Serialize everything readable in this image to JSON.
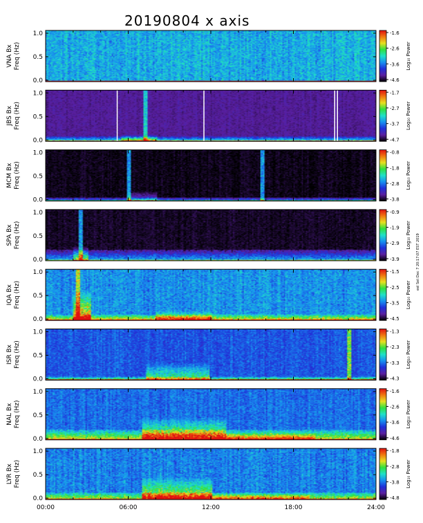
{
  "page": {
    "title": "20190804  x  axis",
    "side_note": "eel Set Dec 7 20:17:07 EST 2019"
  },
  "chart_data": {
    "type": "heatmap",
    "title": "20190804  x  axis",
    "xlabel": "",
    "x_ticks": [
      "00:00",
      "06:00",
      "12:00",
      "18:00",
      "24:00"
    ],
    "x_range_hours": [
      0,
      24
    ],
    "y_ticks": [
      "0.0",
      "0.5",
      "1.0"
    ],
    "ylim": [
      0,
      1.0
    ],
    "colorbar_label": "Log₁₀ Power",
    "colormap": [
      "#000000",
      "#5a1fa0",
      "#2030d8",
      "#1890f0",
      "#20e0c8",
      "#30e040",
      "#e8e020",
      "#f07810",
      "#e01010"
    ],
    "panels": [
      {
        "station": "VNA",
        "ylabel": "VNA Bx",
        "ylabel2": "Freq (Hz)",
        "cbar_ticks": [
          "-1.6",
          "-2.6",
          "-3.6",
          "-4.6"
        ],
        "base": 0.42,
        "noise": 0.14,
        "floor": 0.03,
        "floor_strength": 0.9,
        "gaps": [],
        "bursts": [],
        "spikes": []
      },
      {
        "station": "JBS",
        "ylabel": "JBS Bx",
        "ylabel2": "Freq (Hz)",
        "cbar_ticks": [
          "-1.7",
          "-2.7",
          "-3.7",
          "-4.7"
        ],
        "base": 0.12,
        "noise": 0.05,
        "floor": 0.1,
        "floor_strength": 0.55,
        "gaps": [
          5.2,
          11.5,
          21.0,
          21.2
        ],
        "bursts": [
          {
            "t0": 5.5,
            "t1": 8.0,
            "f": 0.15,
            "s": 0.4
          }
        ],
        "spikes": [
          7.2
        ]
      },
      {
        "station": "MCM",
        "ylabel": "MCM Bx",
        "ylabel2": "Freq (Hz)",
        "cbar_ticks": [
          "-0.8",
          "-1.8",
          "-2.8",
          "-3.8"
        ],
        "base": 0.02,
        "noise": 0.05,
        "floor": 0.08,
        "floor_strength": 0.45,
        "gaps": [],
        "bursts": [
          {
            "t0": 6.0,
            "t1": 8.0,
            "f": 0.2,
            "s": 0.3
          }
        ],
        "spikes": [
          6.0,
          15.7
        ]
      },
      {
        "station": "SPA",
        "ylabel": "SPA Bx",
        "ylabel2": "Freq (Hz)",
        "cbar_ticks": [
          "-0.9",
          "-1.9",
          "-2.9",
          "-3.9"
        ],
        "base": 0.03,
        "noise": 0.05,
        "floor": 0.22,
        "floor_strength": 0.5,
        "gaps": [],
        "bursts": [
          {
            "t0": 2.0,
            "t1": 3.0,
            "f": 0.3,
            "s": 0.4
          }
        ],
        "spikes": [
          2.5
        ]
      },
      {
        "station": "IQA",
        "ylabel": "IQA Bx",
        "ylabel2": "Freq (Hz)",
        "cbar_ticks": [
          "-1.5",
          "-2.5",
          "-3.5",
          "-4.5"
        ],
        "base": 0.38,
        "noise": 0.13,
        "floor": 0.12,
        "floor_strength": 0.6,
        "gaps": [],
        "bursts": [
          {
            "t0": 2.0,
            "t1": 3.2,
            "f": 0.6,
            "s": 0.6
          },
          {
            "t0": 8.0,
            "t1": 12.0,
            "f": 0.2,
            "s": 0.4
          }
        ],
        "spikes": [
          2.3
        ]
      },
      {
        "station": "ISR",
        "ylabel": "ISR Bx",
        "ylabel2": "Freq (Hz)",
        "cbar_ticks": [
          "-1.3",
          "-2.3",
          "-3.3",
          "-4.3"
        ],
        "base": 0.3,
        "noise": 0.1,
        "floor": 0.07,
        "floor_strength": 0.55,
        "gaps": [],
        "bursts": [
          {
            "t0": 7.2,
            "t1": 11.8,
            "f": 0.35,
            "s": 0.4
          }
        ],
        "spikes": [
          22.0
        ]
      },
      {
        "station": "NAL",
        "ylabel": "NAL Bx",
        "ylabel2": "Freq (Hz)",
        "cbar_ticks": [
          "-1.6",
          "-2.6",
          "-3.6",
          "-4.6"
        ],
        "base": 0.33,
        "noise": 0.11,
        "floor": 0.2,
        "floor_strength": 0.55,
        "gaps": [],
        "bursts": [
          {
            "t0": 7.0,
            "t1": 13.0,
            "f": 0.45,
            "s": 0.5
          },
          {
            "t0": 13.0,
            "t1": 19.5,
            "f": 0.15,
            "s": 0.35
          }
        ],
        "spikes": []
      },
      {
        "station": "LYR",
        "ylabel": "LYR Bx",
        "ylabel2": "Freq (Hz)",
        "cbar_ticks": [
          "-1.8",
          "-2.8",
          "-3.8",
          "-4.8"
        ],
        "base": 0.36,
        "noise": 0.13,
        "floor": 0.15,
        "floor_strength": 0.5,
        "gaps": [],
        "bursts": [
          {
            "t0": 7.0,
            "t1": 12.0,
            "f": 0.45,
            "s": 0.5
          },
          {
            "t0": 12.0,
            "t1": 19.0,
            "f": 0.12,
            "s": 0.35
          }
        ],
        "spikes": []
      }
    ]
  }
}
